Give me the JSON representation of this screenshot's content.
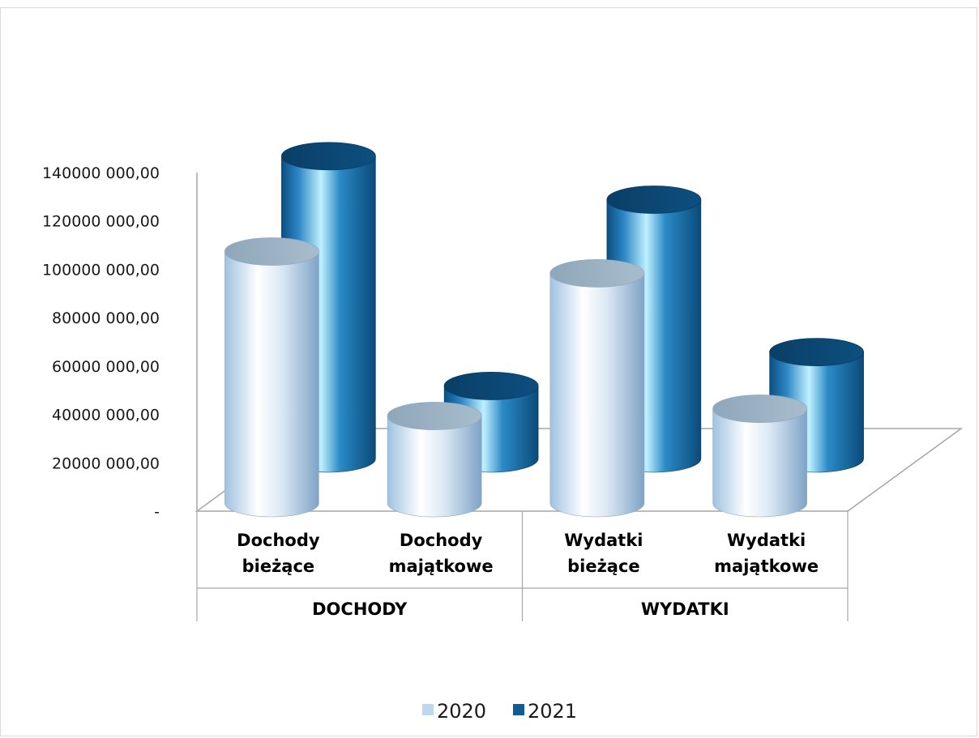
{
  "chart_data": {
    "type": "bar",
    "style": "3d-cylinder",
    "title": "",
    "xlabel": "",
    "ylabel": "",
    "ylim": [
      0,
      140000000
    ],
    "y_ticks": [
      {
        "value": 0,
        "label": "-"
      },
      {
        "value": 20000000,
        "label": "20000 000,00"
      },
      {
        "value": 40000000,
        "label": "40000 000,00"
      },
      {
        "value": 60000000,
        "label": "60000 000,00"
      },
      {
        "value": 80000000,
        "label": "80000 000,00"
      },
      {
        "value": 100000000,
        "label": "100000 000,00"
      },
      {
        "value": 120000000,
        "label": "120000 000,00"
      },
      {
        "value": 140000000,
        "label": "140000 000,00"
      }
    ],
    "categories": [
      {
        "line1": "Dochody",
        "line2": "bieżące"
      },
      {
        "line1": "Dochody",
        "line2": "majątkowe"
      },
      {
        "line1": "Wydatki",
        "line2": "bieżące"
      },
      {
        "line1": "Wydatki",
        "line2": "majątkowe"
      }
    ],
    "groups": [
      {
        "label": "DOCHODY",
        "span": [
          0,
          1
        ]
      },
      {
        "label": "WYDATKI",
        "span": [
          2,
          3
        ]
      }
    ],
    "series": [
      {
        "name": "2020",
        "color": "#bcd7ee",
        "values": [
          104000000,
          36000000,
          95000000,
          39000000
        ]
      },
      {
        "name": "2021",
        "color": "#0e5c94",
        "values": [
          125000000,
          30000000,
          107000000,
          44000000
        ]
      }
    ],
    "legend": "bottom",
    "grid": false
  }
}
